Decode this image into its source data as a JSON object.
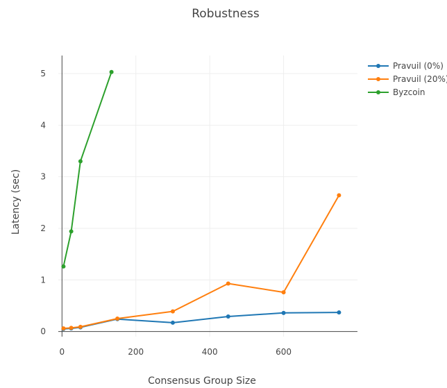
{
  "chart_data": {
    "type": "line",
    "title": "Robustness",
    "xlabel": "Consensus Group Size",
    "ylabel": "Latency (sec)",
    "xlim": [
      -10,
      800
    ],
    "ylim": [
      -0.1,
      5.35
    ],
    "xticks": [
      0,
      200,
      400,
      600
    ],
    "yticks": [
      0,
      1,
      2,
      3,
      4,
      5
    ],
    "grid": true,
    "legend_position": "top-right",
    "series": [
      {
        "name": "Pravuil (0%)",
        "color": "#1f77b4",
        "x": [
          4,
          25,
          50,
          150,
          300,
          450,
          600,
          750
        ],
        "y": [
          0.05,
          0.06,
          0.08,
          0.24,
          0.17,
          0.29,
          0.36,
          0.37
        ]
      },
      {
        "name": "Pravuil (20%)",
        "color": "#ff7f0e",
        "x": [
          4,
          25,
          50,
          150,
          300,
          450,
          600,
          750
        ],
        "y": [
          0.06,
          0.07,
          0.09,
          0.25,
          0.39,
          0.93,
          0.76,
          2.64
        ]
      },
      {
        "name": "Byzcoin",
        "color": "#2ca02c",
        "x": [
          4,
          25,
          50,
          134
        ],
        "y": [
          1.26,
          1.94,
          3.3,
          5.03
        ]
      }
    ]
  }
}
